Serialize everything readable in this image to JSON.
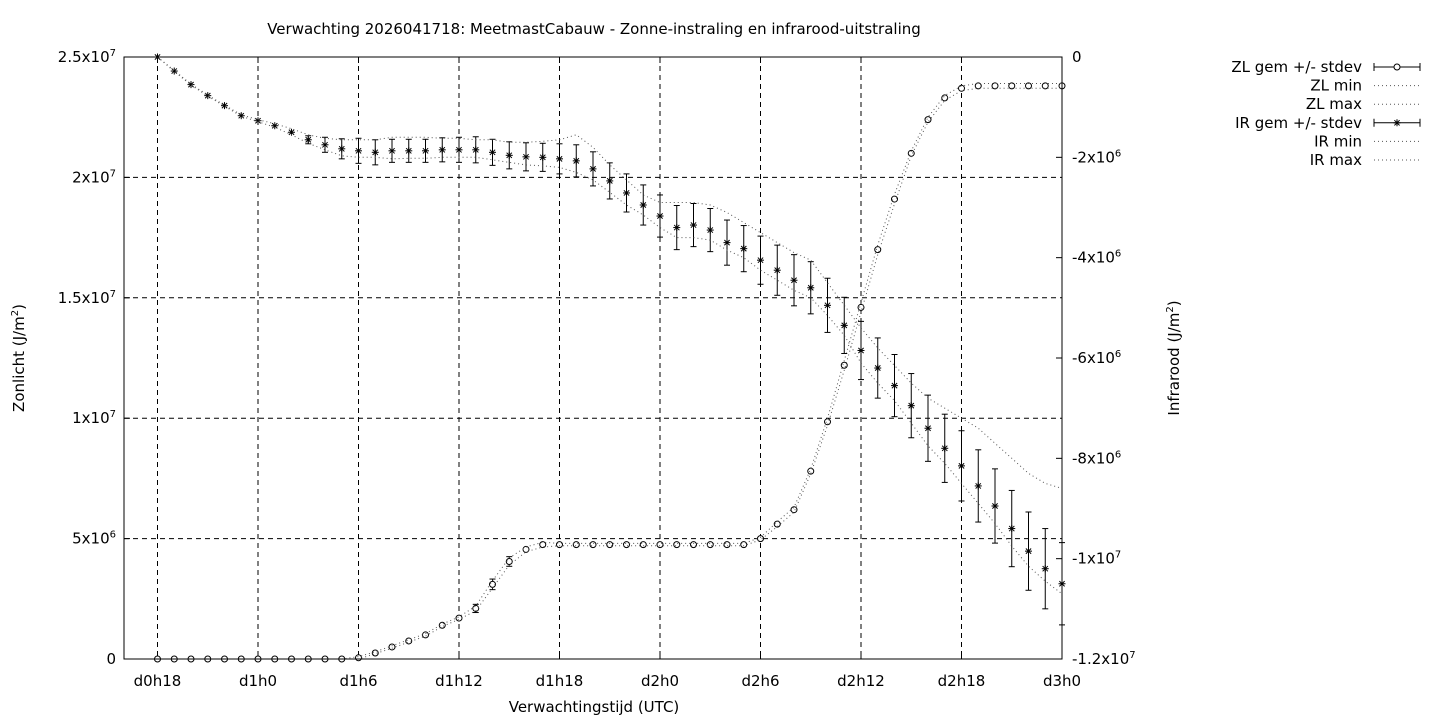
{
  "chart_data": {
    "type": "line",
    "title": "Verwachting 2026041718: MeetmastCabauw - Zonne-instraling en infrarood-uitstraling",
    "xlabel": "Verwachtingstijd (UTC)",
    "ylabel": "Zonlicht (J/m²)",
    "y2label": "Infrarood (J/m²)",
    "x_hours": [
      18,
      19,
      20,
      21,
      22,
      23,
      24,
      25,
      26,
      27,
      28,
      29,
      30,
      31,
      32,
      33,
      34,
      35,
      36,
      37,
      38,
      39,
      40,
      41,
      42,
      43,
      44,
      45,
      46,
      47,
      48,
      49,
      50,
      51,
      52,
      53,
      54,
      55,
      56,
      57,
      58,
      59,
      60,
      61,
      62,
      63,
      64,
      65,
      66,
      67,
      68,
      69,
      70,
      71,
      72
    ],
    "xlim": [
      16,
      72
    ],
    "x_ticks": [
      18,
      24,
      30,
      36,
      42,
      48,
      54,
      60,
      66,
      72
    ],
    "x_tick_labels": [
      "d0h18",
      "d1h0",
      "d1h6",
      "d1h12",
      "d1h18",
      "d2h0",
      "d2h6",
      "d2h12",
      "d2h18",
      "d3h0"
    ],
    "ylim": [
      0,
      25000000
    ],
    "y_ticks": [
      0,
      5000000,
      10000000,
      15000000,
      20000000,
      25000000
    ],
    "y_tick_labels": [
      [
        "0",
        ""
      ],
      [
        "5x10",
        "6"
      ],
      [
        "1x10",
        "7"
      ],
      [
        "1.5x10",
        "7"
      ],
      [
        "2x10",
        "7"
      ],
      [
        "2.5x10",
        "7"
      ]
    ],
    "y2lim": [
      -12000000,
      0
    ],
    "y2_ticks": [
      0,
      -2000000,
      -4000000,
      -6000000,
      -8000000,
      -10000000,
      -12000000
    ],
    "y2_tick_labels": [
      [
        "0",
        ""
      ],
      [
        "-2x10",
        "6"
      ],
      [
        "-4x10",
        "6"
      ],
      [
        "-6x10",
        "6"
      ],
      [
        "-8x10",
        "6"
      ],
      [
        "-1x10",
        "7"
      ],
      [
        "-1.2x10",
        "7"
      ]
    ],
    "grid": true,
    "legend_position": "outside top-right",
    "series": [
      {
        "name": "ZL gem +/- stdev",
        "axis": "y1",
        "marker": "circle",
        "values": [
          0,
          0,
          0,
          0,
          0,
          0,
          0,
          0,
          0,
          0,
          0,
          0,
          50000,
          250000,
          500000,
          750000,
          1000000,
          1400000,
          1700000,
          2100000,
          3100000,
          4050000,
          4550000,
          4750000,
          4750000,
          4750000,
          4750000,
          4750000,
          4750000,
          4750000,
          4750000,
          4750000,
          4750000,
          4750000,
          4750000,
          4750000,
          5000000,
          5600000,
          6200000,
          7800000,
          9850000,
          12200000,
          14600000,
          17000000,
          19100000,
          21000000,
          22400000,
          23300000,
          23700000,
          23800000,
          23800000,
          23800000,
          23800000,
          23800000,
          23800000
        ],
        "stdev": [
          0,
          0,
          0,
          0,
          0,
          0,
          0,
          0,
          0,
          0,
          0,
          0,
          0,
          0,
          0,
          0,
          0,
          0,
          0,
          170000,
          220000,
          200000,
          0,
          0,
          0,
          0,
          0,
          0,
          0,
          0,
          0,
          0,
          0,
          0,
          0,
          0,
          0,
          0,
          0,
          0,
          0,
          0,
          0,
          0,
          0,
          0,
          0,
          0,
          0,
          0,
          0,
          0,
          0,
          0,
          0
        ]
      },
      {
        "name": "ZL min",
        "axis": "y1",
        "style": "dotted",
        "values": [
          0,
          0,
          0,
          0,
          0,
          0,
          0,
          0,
          0,
          0,
          0,
          0,
          0,
          220000,
          450000,
          700000,
          950000,
          1350000,
          1650000,
          2000000,
          2950000,
          3900000,
          4450000,
          4650000,
          4700000,
          4700000,
          4700000,
          4700000,
          4700000,
          4700000,
          4700000,
          4700000,
          4700000,
          4700000,
          4700000,
          4700000,
          4950000,
          5500000,
          6100000,
          7700000,
          9700000,
          12000000,
          14400000,
          16800000,
          18900000,
          20900000,
          22300000,
          23200000,
          23600000,
          23700000,
          23700000,
          23700000,
          23700000,
          23700000,
          23700000
        ]
      },
      {
        "name": "ZL max",
        "axis": "y1",
        "style": "dotted",
        "values": [
          0,
          0,
          0,
          0,
          0,
          0,
          0,
          0,
          0,
          0,
          0,
          0,
          100000,
          300000,
          550000,
          800000,
          1050000,
          1450000,
          1750000,
          2200000,
          3250000,
          4200000,
          4650000,
          4850000,
          4800000,
          4800000,
          4800000,
          4800000,
          4800000,
          4800000,
          4800000,
          4800000,
          4800000,
          4800000,
          4800000,
          4800000,
          5050000,
          5700000,
          6300000,
          7900000,
          10000000,
          12400000,
          14800000,
          17200000,
          19300000,
          21100000,
          22500000,
          23400000,
          23800000,
          23900000,
          23900000,
          23900000,
          23900000,
          23900000,
          23900000
        ]
      },
      {
        "name": "IR gem +/- stdev",
        "axis": "y2",
        "marker": "star",
        "values": [
          0,
          -280000,
          -550000,
          -770000,
          -970000,
          -1170000,
          -1270000,
          -1370000,
          -1500000,
          -1650000,
          -1750000,
          -1830000,
          -1870000,
          -1900000,
          -1870000,
          -1870000,
          -1870000,
          -1850000,
          -1850000,
          -1850000,
          -1900000,
          -1960000,
          -1990000,
          -2000000,
          -2030000,
          -2070000,
          -2230000,
          -2470000,
          -2710000,
          -2950000,
          -3170000,
          -3400000,
          -3350000,
          -3450000,
          -3700000,
          -3820000,
          -4050000,
          -4250000,
          -4450000,
          -4600000,
          -4950000,
          -5350000,
          -5850000,
          -6200000,
          -6550000,
          -6950000,
          -7400000,
          -7800000,
          -8150000,
          -8550000,
          -8950000,
          -9400000,
          -9850000,
          -10200000,
          -10500000
        ],
        "stdev": [
          0,
          0,
          0,
          0,
          0,
          0,
          0,
          0,
          0,
          80000,
          150000,
          200000,
          250000,
          250000,
          230000,
          230000,
          230000,
          240000,
          250000,
          260000,
          260000,
          270000,
          280000,
          280000,
          300000,
          320000,
          340000,
          360000,
          380000,
          400000,
          420000,
          440000,
          430000,
          430000,
          450000,
          460000,
          480000,
          500000,
          510000,
          520000,
          540000,
          560000,
          580000,
          600000,
          620000,
          640000,
          660000,
          680000,
          700000,
          720000,
          740000,
          760000,
          780000,
          800000,
          820000
        ]
      },
      {
        "name": "IR min",
        "axis": "y2",
        "style": "dotted",
        "values": [
          0,
          -290000,
          -560000,
          -780000,
          -980000,
          -1180000,
          -1290000,
          -1400000,
          -1550000,
          -1720000,
          -1850000,
          -1970000,
          -2000000,
          -2000000,
          -2030000,
          -2020000,
          -2020000,
          -2000000,
          -2000000,
          -2000000,
          -2050000,
          -2100000,
          -2150000,
          -2170000,
          -2200000,
          -2300000,
          -2450000,
          -2700000,
          -2950000,
          -3150000,
          -3400000,
          -3600000,
          -3600000,
          -3650000,
          -3850000,
          -4000000,
          -4250000,
          -4450000,
          -4650000,
          -4800000,
          -5150000,
          -5550000,
          -6100000,
          -6500000,
          -6850000,
          -7300000,
          -7750000,
          -8100000,
          -8500000,
          -8900000,
          -9300000,
          -9750000,
          -10150000,
          -10450000,
          -10700000
        ]
      },
      {
        "name": "IR max",
        "axis": "y2",
        "style": "dotted",
        "values": [
          0,
          -270000,
          -540000,
          -760000,
          -960000,
          -1150000,
          -1250000,
          -1330000,
          -1430000,
          -1550000,
          -1620000,
          -1650000,
          -1650000,
          -1650000,
          -1600000,
          -1600000,
          -1600000,
          -1620000,
          -1620000,
          -1650000,
          -1650000,
          -1700000,
          -1700000,
          -1680000,
          -1650000,
          -1550000,
          -1800000,
          -2150000,
          -2450000,
          -2750000,
          -2900000,
          -2900000,
          -2900000,
          -2950000,
          -3100000,
          -3300000,
          -3500000,
          -3700000,
          -3900000,
          -4050000,
          -4500000,
          -4950000,
          -5400000,
          -5800000,
          -6150000,
          -6500000,
          -6800000,
          -7000000,
          -7200000,
          -7400000,
          -7700000,
          -8000000,
          -8300000,
          -8500000,
          -8600000
        ]
      }
    ]
  }
}
